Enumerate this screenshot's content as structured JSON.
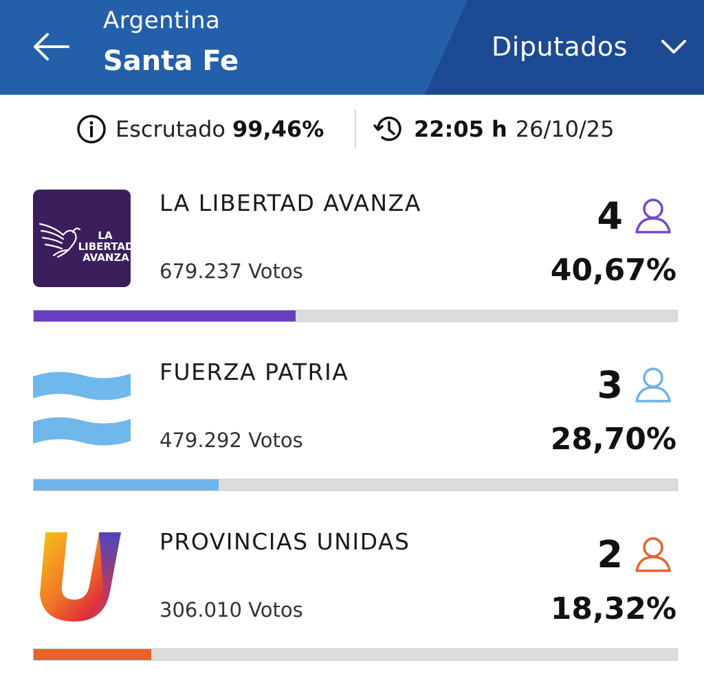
{
  "header": {
    "country": "Argentina",
    "province": "Santa Fe",
    "chamber": "Diputados",
    "bg_color": "#1f5ca6",
    "bg_color_dark": "#1a4a90"
  },
  "status": {
    "scrutinized_label": "Escrutado",
    "scrutinized_value": "99,46%",
    "time": "22:05 h",
    "date": "26/10/25"
  },
  "parties": [
    {
      "name": "LA LIBERTAD AVANZA",
      "votes": "679.237 Votos",
      "seats": "4",
      "percent": "40,67%",
      "percent_value": 40.67,
      "color": "#6a3fbf",
      "logo_text": [
        "LA",
        "LIBERTAD",
        "AVANZA"
      ],
      "logo_bg": "#3a1f5c"
    },
    {
      "name": "FUERZA PATRIA",
      "votes": "479.292 Votos",
      "seats": "3",
      "percent": "28,70%",
      "percent_value": 28.7,
      "color": "#6fb3e8"
    },
    {
      "name": "PROVINCIAS UNIDAS",
      "votes": "306.010 Votos",
      "seats": "2",
      "percent": "18,32%",
      "percent_value": 18.32,
      "color": "#e8632a"
    }
  ]
}
